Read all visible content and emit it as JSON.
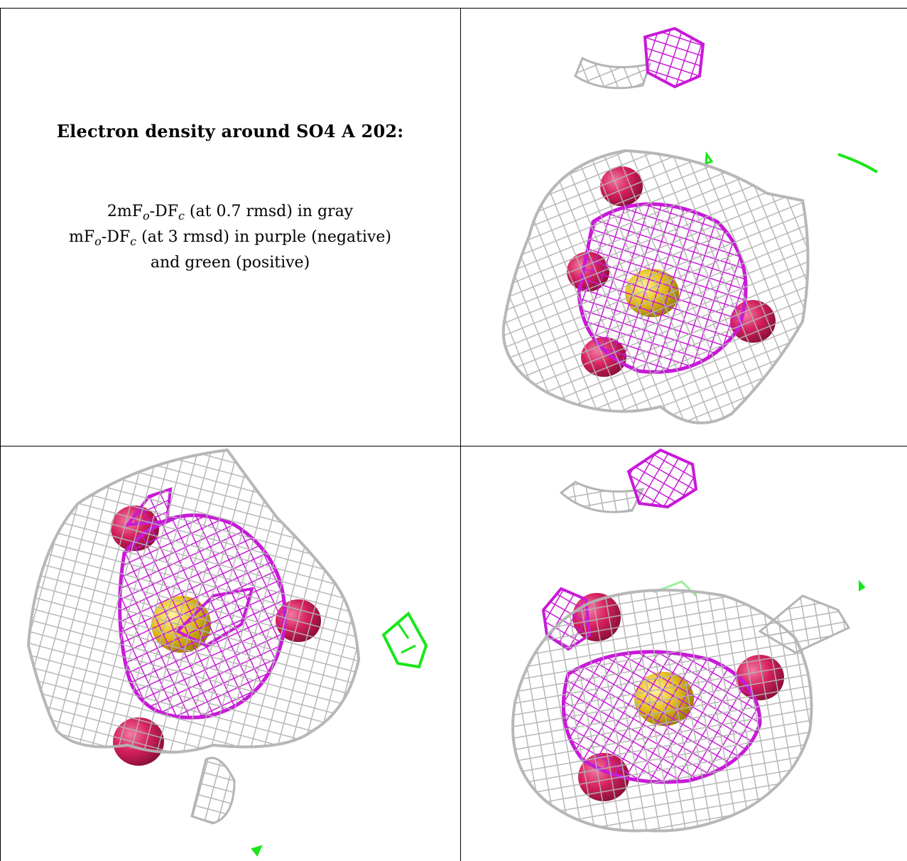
{
  "caption": {
    "title": "Electron density around SO4 A 202:",
    "line1": {
      "a": "2mF",
      "s1": "o",
      "b": "-DF",
      "s2": "c",
      "c": " (at 0.7 rmsd) in gray"
    },
    "line2": {
      "a": "mF",
      "s1": "o",
      "b": "-DF",
      "s2": "c",
      "c": " (at 3 rmsd) in purple (negative)"
    },
    "line3": "and green (positive)"
  },
  "colors": {
    "gray_mesh": "#b4b4b4",
    "purple_mesh": "#c819d8",
    "green_mesh": "#19e619",
    "oxygen": "#d6215f",
    "sulfur": "#e8c21c",
    "border": "#000000"
  }
}
